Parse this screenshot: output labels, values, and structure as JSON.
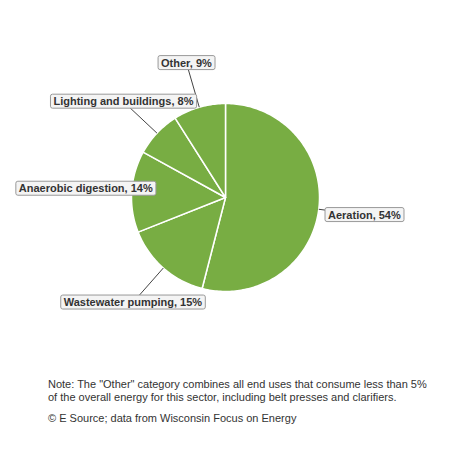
{
  "chart_data": {
    "type": "pie",
    "categories": [
      "Aeration",
      "Wastewater pumping",
      "Anaerobic digestion",
      "Lighting and buildings",
      "Other"
    ],
    "values": [
      54,
      15,
      14,
      8,
      9
    ],
    "data_labels": true,
    "value_labels": [
      "Aeration, 54%",
      "Wastewater pumping, 15%",
      "Anaerobic digestion, 14%",
      "Lighting and buildings, 8%",
      "Other, 9%"
    ],
    "color": "#78ad43",
    "annotations": [
      "Note: The \"Other\" category combines all end uses that consume less than 5% of the overall energy for this sector, including belt presses and clarifiers.",
      "© E Source; data from Wisconsin Focus on Energy"
    ]
  }
}
